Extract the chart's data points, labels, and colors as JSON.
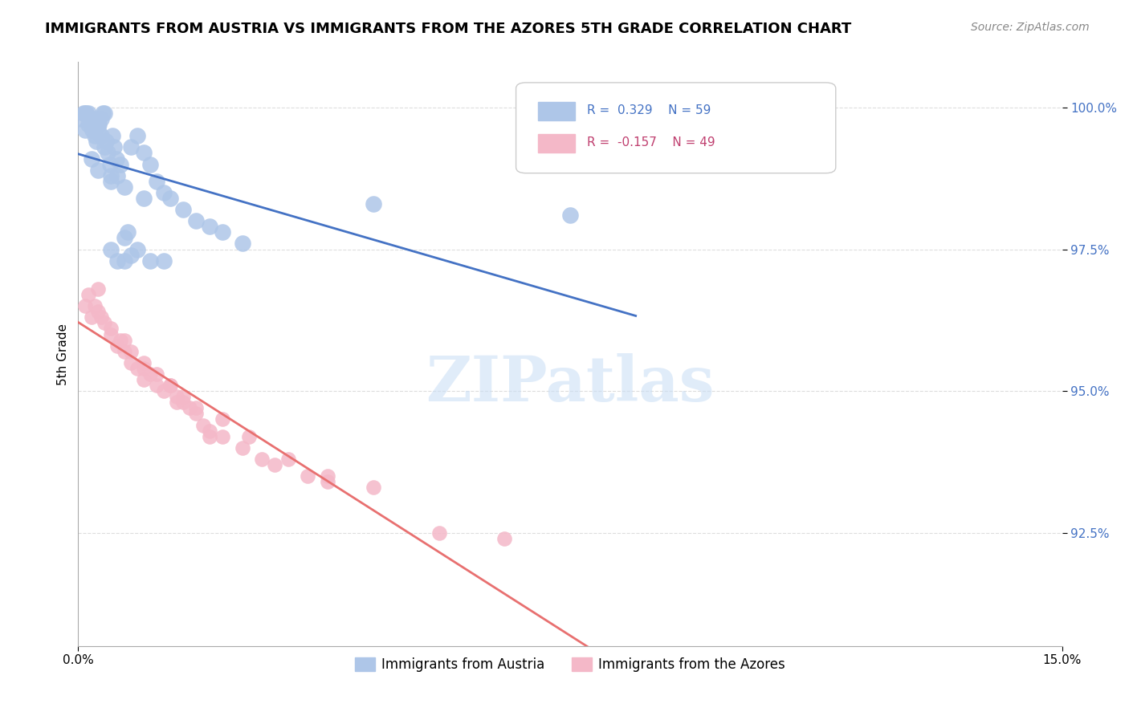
{
  "title": "IMMIGRANTS FROM AUSTRIA VS IMMIGRANTS FROM THE AZORES 5TH GRADE CORRELATION CHART",
  "source": "Source: ZipAtlas.com",
  "ylabel": "5th Grade",
  "xlim": [
    0.0,
    15.0
  ],
  "ylim": [
    90.5,
    100.8
  ],
  "legend_austria": "Immigrants from Austria",
  "legend_azores": "Immigrants from the Azores",
  "austria_R": 0.329,
  "austria_N": 59,
  "azores_R": -0.157,
  "azores_N": 49,
  "austria_color": "#aec6e8",
  "azores_color": "#f4b8c8",
  "austria_line_color": "#4472c4",
  "azores_line_color": "#e87070",
  "watermark": "ZIPatlas",
  "austria_x": [
    0.05,
    0.08,
    0.1,
    0.12,
    0.15,
    0.18,
    0.2,
    0.22,
    0.25,
    0.28,
    0.3,
    0.32,
    0.35,
    0.38,
    0.4,
    0.42,
    0.45,
    0.48,
    0.5,
    0.52,
    0.55,
    0.58,
    0.6,
    0.65,
    0.7,
    0.75,
    0.8,
    0.9,
    1.0,
    1.1,
    1.2,
    1.3,
    1.4,
    1.6,
    1.8,
    2.0,
    2.2,
    2.5,
    4.5,
    7.5,
    0.1,
    0.15,
    0.2,
    0.25,
    0.3,
    0.35,
    0.4,
    0.5,
    0.6,
    0.7,
    0.8,
    0.9,
    1.1,
    1.3,
    0.2,
    0.3,
    0.5,
    0.7,
    1.0
  ],
  "austria_y": [
    99.8,
    99.9,
    99.9,
    99.9,
    99.9,
    99.8,
    99.7,
    99.6,
    99.5,
    99.4,
    99.6,
    99.7,
    99.8,
    99.9,
    99.9,
    99.4,
    99.2,
    99.0,
    98.8,
    99.5,
    99.3,
    99.1,
    98.8,
    99.0,
    97.7,
    97.8,
    99.3,
    99.5,
    99.2,
    99.0,
    98.7,
    98.5,
    98.4,
    98.2,
    98.0,
    97.9,
    97.8,
    97.6,
    98.3,
    98.1,
    99.6,
    99.7,
    99.7,
    99.8,
    99.7,
    99.5,
    99.3,
    97.5,
    97.3,
    97.3,
    97.4,
    97.5,
    97.3,
    97.3,
    99.1,
    98.9,
    98.7,
    98.6,
    98.4
  ],
  "azores_x": [
    0.1,
    0.2,
    0.3,
    0.4,
    0.5,
    0.6,
    0.7,
    0.8,
    0.9,
    1.0,
    1.1,
    1.2,
    1.3,
    1.4,
    1.5,
    1.6,
    1.7,
    1.8,
    1.9,
    2.0,
    2.2,
    2.5,
    2.8,
    3.0,
    3.5,
    3.8,
    4.5,
    5.5,
    6.5,
    0.15,
    0.25,
    0.35,
    0.5,
    0.65,
    0.8,
    1.0,
    1.2,
    1.4,
    1.6,
    1.8,
    2.2,
    2.6,
    3.2,
    3.8,
    0.3,
    0.7,
    1.0,
    1.5,
    2.0
  ],
  "azores_y": [
    96.5,
    96.3,
    96.4,
    96.2,
    96.0,
    95.8,
    95.7,
    95.5,
    95.4,
    95.2,
    95.3,
    95.1,
    95.0,
    95.1,
    94.9,
    94.8,
    94.7,
    94.6,
    94.4,
    94.3,
    94.2,
    94.0,
    93.8,
    93.7,
    93.5,
    93.4,
    93.3,
    92.5,
    92.4,
    96.7,
    96.5,
    96.3,
    96.1,
    95.9,
    95.7,
    95.5,
    95.3,
    95.1,
    94.9,
    94.7,
    94.5,
    94.2,
    93.8,
    93.5,
    96.8,
    95.9,
    95.4,
    94.8,
    94.2
  ]
}
